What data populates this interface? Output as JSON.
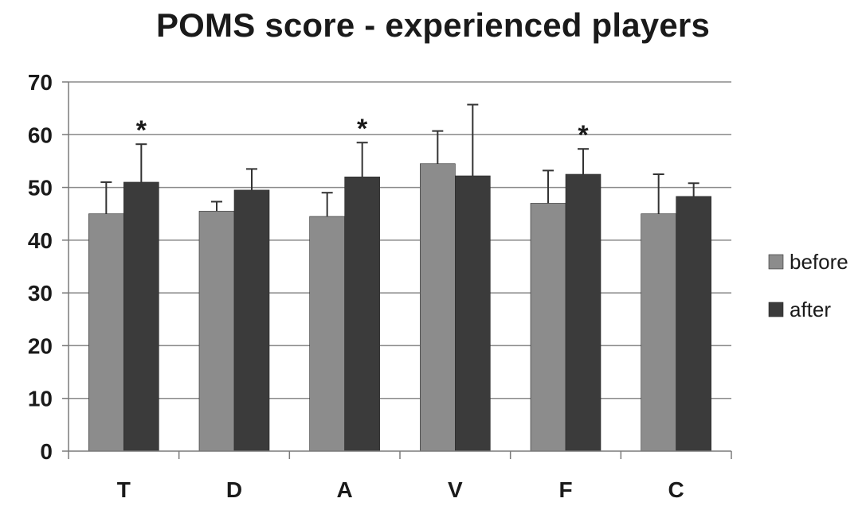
{
  "chart_data": {
    "type": "bar",
    "title": "POMS score - experienced players",
    "xlabel": "",
    "ylabel": "",
    "categories": [
      "T",
      "D",
      "A",
      "V",
      "F",
      "C"
    ],
    "ylim": [
      0,
      70
    ],
    "yticks": [
      0,
      10,
      20,
      30,
      40,
      50,
      60,
      70
    ],
    "grid": true,
    "legend_position": "right",
    "series": [
      {
        "name": "before",
        "color": "#8c8c8c",
        "values": [
          45,
          45.5,
          44.5,
          54.5,
          47,
          45
        ],
        "error": [
          6,
          1.8,
          4.5,
          6.2,
          6.2,
          7.5
        ]
      },
      {
        "name": "after",
        "color": "#3b3b3b",
        "values": [
          51,
          49.5,
          52,
          52.2,
          52.5,
          48.3
        ],
        "error": [
          7.2,
          4,
          6.5,
          13.5,
          4.8,
          2.5
        ]
      }
    ],
    "annotations": [
      {
        "category": "T",
        "text": "*"
      },
      {
        "category": "A",
        "text": "*"
      },
      {
        "category": "F",
        "text": "*"
      }
    ]
  }
}
